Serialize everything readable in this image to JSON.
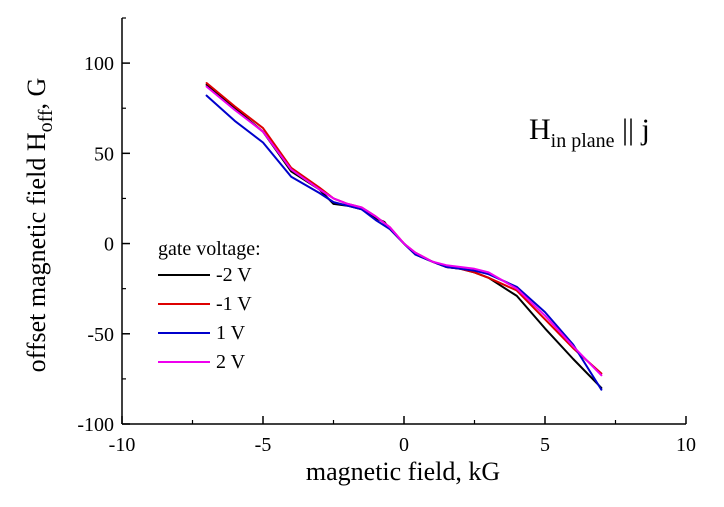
{
  "chart_data": {
    "type": "line",
    "xlabel": "magnetic field, kG",
    "ylabel_main": "offset magnetic field H",
    "ylabel_sub": "off",
    "ylabel_tail": ", G",
    "xlim": [
      -10,
      10
    ],
    "ylim": [
      -100,
      125
    ],
    "xticks": [
      -10,
      -5,
      0,
      5,
      10
    ],
    "yticks": [
      -100,
      -50,
      0,
      50,
      100
    ],
    "xtick_labels": [
      "-10",
      "-5",
      "0",
      "5",
      "10"
    ],
    "ytick_labels": [
      "-100",
      "-50",
      "0",
      "50",
      "100"
    ],
    "grid": false,
    "legend_title": "gate voltage:",
    "legend_position": "left",
    "annotation": {
      "main": "H",
      "sub": "in plane",
      "tail": " || j"
    },
    "series": [
      {
        "name": "-2 V",
        "color": "#000000",
        "x": [
          -7,
          -6,
          -5,
          -4,
          -3,
          -2.5,
          -2,
          -1.5,
          -1,
          -0.7,
          -0.5,
          0,
          0.4,
          1,
          1.5,
          2,
          2.5,
          3,
          4,
          5,
          6,
          7
        ],
        "y": [
          88,
          75,
          62,
          40,
          30,
          22,
          21,
          19,
          14,
          12,
          8,
          0,
          -6,
          -10,
          -13,
          -14,
          -16,
          -19,
          -29,
          -47,
          -64,
          -80
        ]
      },
      {
        "name": "-1 V",
        "color": "#dd0000",
        "x": [
          -7,
          -6,
          -5,
          -4,
          -3,
          -2.5,
          -2,
          -1.5,
          -1,
          -0.5,
          0,
          0.4,
          1,
          1.5,
          2,
          2.5,
          3,
          4,
          5,
          6,
          7
        ],
        "y": [
          89,
          76,
          64,
          42,
          31,
          25,
          22,
          20,
          15,
          9,
          0,
          -5,
          -10,
          -13,
          -14,
          -16,
          -19,
          -26,
          -42,
          -58,
          -72
        ]
      },
      {
        "name": "1 V",
        "color": "#0000cc",
        "x": [
          -7,
          -6,
          -5,
          -4,
          -3,
          -2.5,
          -2,
          -1.5,
          -1,
          -0.5,
          0,
          0.4,
          1,
          1.5,
          2,
          2.5,
          3,
          4,
          5,
          6,
          7
        ],
        "y": [
          82,
          68,
          56,
          37,
          28,
          23,
          21,
          19,
          13,
          8,
          0,
          -6,
          -10,
          -13,
          -14,
          -15,
          -17,
          -24,
          -38,
          -56,
          -81
        ]
      },
      {
        "name": "2 V",
        "color": "#ee00ee",
        "x": [
          -7,
          -6,
          -5,
          -4,
          -3,
          -2.5,
          -2,
          -1.5,
          -1,
          -0.5,
          0,
          0.4,
          1,
          1.5,
          2,
          2.5,
          3,
          4,
          5,
          6,
          7
        ],
        "y": [
          87,
          74,
          62,
          41,
          30,
          25,
          22,
          20,
          15,
          9,
          0,
          -5,
          -10,
          -12,
          -13,
          -14,
          -16,
          -25,
          -40,
          -57,
          -73
        ]
      }
    ]
  }
}
